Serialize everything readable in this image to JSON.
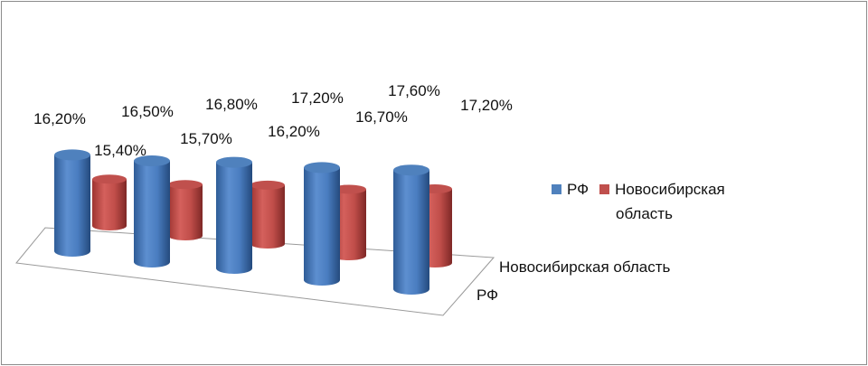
{
  "chart_data": {
    "type": "bar",
    "style": "3d-cylinder",
    "categories": [
      "",
      "",
      "",
      "",
      ""
    ],
    "series": [
      {
        "name": "РФ",
        "values": [
          16.2,
          16.5,
          16.8,
          17.2,
          17.6
        ],
        "labels": [
          "16,20%",
          "16,50%",
          "16,80%",
          "17,20%",
          "17,60%"
        ],
        "color": "#4f81bd"
      },
      {
        "name": "Новосибирская область",
        "values": [
          15.4,
          15.7,
          16.2,
          16.7,
          17.2
        ],
        "labels": [
          "15,40%",
          "15,70%",
          "16,20%",
          "16,70%",
          "17,20%"
        ],
        "color": "#c0504d"
      }
    ],
    "depth_axis_labels": [
      "Новосибирская область",
      "РФ"
    ],
    "legend": {
      "position": "right",
      "items": [
        {
          "label_line1": "РФ",
          "color": "#4f81bd"
        },
        {
          "label_line1": "Новосибирская",
          "label_line2": "область",
          "color": "#c0504d"
        }
      ]
    },
    "title": "",
    "xlabel": "",
    "ylabel": "",
    "grid": false
  }
}
